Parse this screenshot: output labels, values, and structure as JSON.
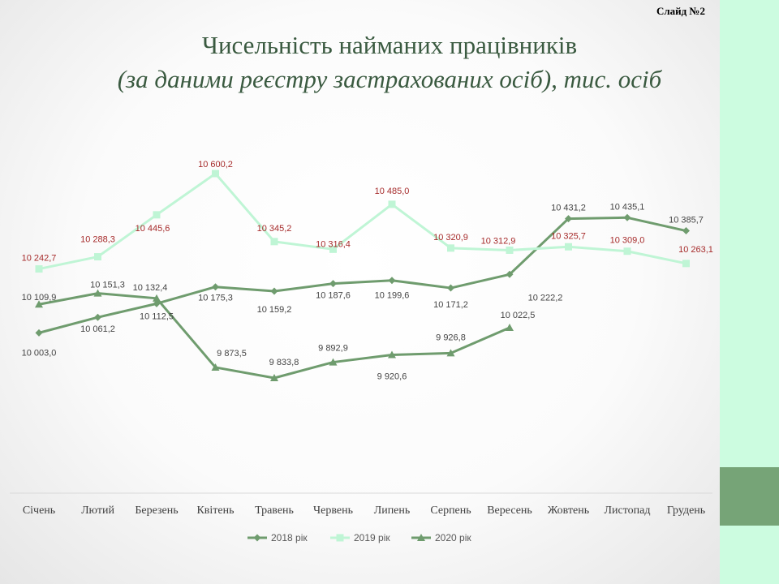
{
  "slide": {
    "number": "Слайд  №2",
    "title": "Чисельність найманих працівників",
    "subtitle": "(за даними реєстру застрахованих осіб), тис. осіб"
  },
  "colors": {
    "2018": "#6f9c6e",
    "2019": "#bff5d5",
    "2020": "#6f9c6e",
    "label_red": "#a62b2b",
    "label_dark": "#444444"
  },
  "chart_data": {
    "type": "line",
    "categories": [
      "Січень",
      "Лютий",
      "Березень",
      "Квітень",
      "Травень",
      "Червень",
      "Липень",
      "Серпень",
      "Вересень",
      "Жовтень",
      "Листопад",
      "Грудень"
    ],
    "series": [
      {
        "name": "2018 рік",
        "marker": "diamond",
        "values": [
          10003.0,
          10061.2,
          10112.5,
          10175.3,
          10159.2,
          10187.6,
          10199.6,
          10171.2,
          10222.2,
          10431.2,
          10435.1,
          10385.7
        ],
        "labels": [
          "10 003,0",
          "10 061,2",
          "10 112,5",
          "10 175,3",
          "10 159,2",
          "10 187,6",
          "10 199,6",
          "10 171,2",
          "10 222,2",
          "10 431,2",
          "10 435,1",
          "10 385,7"
        ]
      },
      {
        "name": "2019 рік",
        "marker": "square",
        "values": [
          10242.7,
          10288.3,
          10445.6,
          10600.2,
          10345.2,
          10316.4,
          10485.0,
          10320.9,
          10312.9,
          10325.7,
          10309.0,
          10263.1
        ],
        "labels": [
          "10 242,7",
          "10 288,3",
          "10 445,6",
          "10 600,2",
          "10 345,2",
          "10 316,4",
          "10 485,0",
          "10 320,9",
          "10 312,9",
          "10 325,7",
          "10 309,0",
          "10 263,1"
        ]
      },
      {
        "name": "2020 рік",
        "marker": "triangle",
        "values": [
          10109.9,
          10151.3,
          10132.4,
          9873.5,
          9833.8,
          9892.9,
          9920.6,
          9926.8,
          10022.5,
          null,
          null,
          null
        ],
        "labels": [
          "10 109,9",
          "10 151,3",
          "10 132,4",
          "9 873,5",
          "9 833,8",
          "9 892,9",
          "9 920,6",
          "9 926,8",
          "10 022,5",
          null,
          null,
          null
        ]
      }
    ],
    "legend_position": "bottom",
    "grid": false
  }
}
